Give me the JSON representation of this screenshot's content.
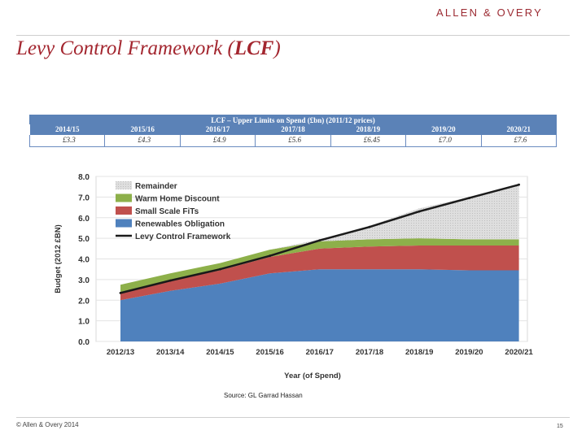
{
  "slide": {
    "logo": "ALLEN & OVERY",
    "title_prefix": "Levy Control Framework (",
    "title_bold": "LCF",
    "title_suffix": ")",
    "source": "Source: GL Garrad Hassan",
    "copyright": "© Allen & Overy 2014",
    "page_number": "15"
  },
  "colors": {
    "brand": "#9c2b33",
    "title": "#a3262f",
    "table_header": "#5b82b7"
  },
  "chart_data": [
    {
      "type": "table",
      "title": "LCF – Upper Limits on Spend (£bn) (2011/12 prices)",
      "columns": [
        "2014/15",
        "2015/16",
        "2016/17",
        "2017/18",
        "2018/19",
        "2019/20",
        "2020/21"
      ],
      "rows": [
        [
          "£3.3",
          "£4.3",
          "£4.9",
          "£5.6",
          "£6.45",
          "£7.0",
          "£7.6"
        ]
      ]
    },
    {
      "type": "area",
      "stacked": true,
      "title": "",
      "xlabel": "Year (of Spend)",
      "ylabel": "Budget (2012 £BN)",
      "categories": [
        "2012/13",
        "2013/14",
        "2014/15",
        "2015/16",
        "2016/17",
        "2017/18",
        "2018/19",
        "2019/20",
        "2020/21"
      ],
      "ylim": [
        0,
        8
      ],
      "yticks": [
        "0.0",
        "1.0",
        "2.0",
        "3.0",
        "4.0",
        "5.0",
        "6.0",
        "7.0",
        "8.0"
      ],
      "grid": true,
      "legend_position": "top-left",
      "series": [
        {
          "name": "Renewables Obligation",
          "color": "#4f81bd",
          "values": [
            2.0,
            2.45,
            2.8,
            3.3,
            3.5,
            3.5,
            3.5,
            3.45,
            3.45
          ]
        },
        {
          "name": "Small Scale FiTs",
          "color": "#c0504d",
          "values": [
            0.4,
            0.5,
            0.65,
            0.8,
            1.0,
            1.1,
            1.15,
            1.2,
            1.2
          ]
        },
        {
          "name": "Warm Home Discount",
          "color": "#8db04a",
          "values": [
            0.35,
            0.35,
            0.35,
            0.35,
            0.35,
            0.35,
            0.35,
            0.3,
            0.3
          ]
        },
        {
          "name": "Remainder",
          "color": "#d4d4d4",
          "values": [
            0,
            0,
            0,
            0,
            0.1,
            0.65,
            1.45,
            2.05,
            2.65
          ]
        }
      ],
      "line_series": {
        "name": "Levy Control Framework",
        "color": "#1a1a1a",
        "values": [
          2.35,
          2.95,
          3.5,
          4.15,
          4.9,
          5.55,
          6.3,
          6.95,
          7.6
        ]
      }
    }
  ]
}
